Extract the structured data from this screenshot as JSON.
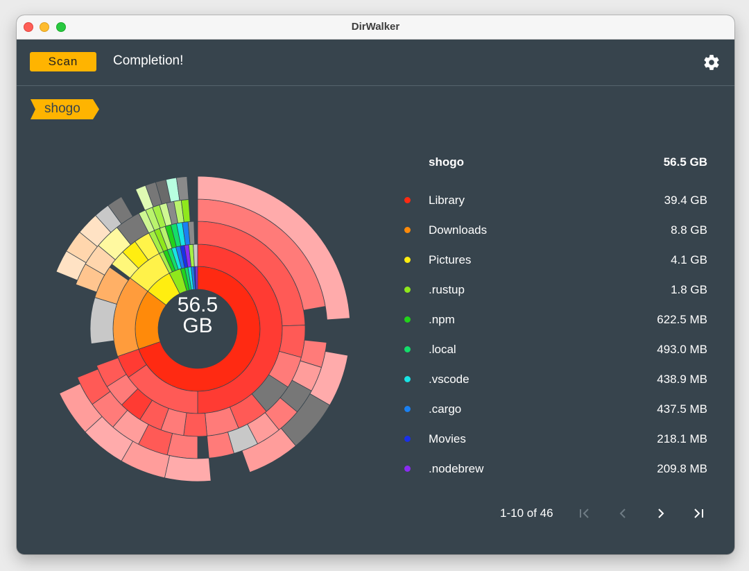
{
  "window": {
    "title": "DirWalker"
  },
  "toolbar": {
    "scan_label": "Scan",
    "status": "Completion!",
    "settings_icon": "gear-icon"
  },
  "breadcrumb": {
    "items": [
      "shogo"
    ],
    "color": "#ffb400"
  },
  "chart": {
    "center_value": "56.5",
    "center_unit": "GB"
  },
  "legend": {
    "root": {
      "name": "shogo",
      "size": "56.5 GB"
    },
    "items": [
      {
        "name": "Library",
        "size": "39.4 GB",
        "color": "#ff2a12"
      },
      {
        "name": "Downloads",
        "size": "8.8 GB",
        "color": "#ff8a0a"
      },
      {
        "name": "Pictures",
        "size": "4.1 GB",
        "color": "#ffee10"
      },
      {
        "name": ".rustup",
        "size": "1.8 GB",
        "color": "#8fe81c"
      },
      {
        "name": ".npm",
        "size": "622.5 MB",
        "color": "#22d31a"
      },
      {
        "name": ".local",
        "size": "493.0 MB",
        "color": "#14de6a"
      },
      {
        "name": ".vscode",
        "size": "438.9 MB",
        "color": "#18e4e4"
      },
      {
        "name": ".cargo",
        "size": "437.5 MB",
        "color": "#1a80f2"
      },
      {
        "name": "Movies",
        "size": "218.1 MB",
        "color": "#1a30e8"
      },
      {
        "name": ".nodebrew",
        "size": "209.8 MB",
        "color": "#8a2cf2"
      }
    ]
  },
  "pagination": {
    "range": "1-10 of 46",
    "first_icon": "first-page-icon",
    "prev_icon": "chevron-left-icon",
    "next_icon": "chevron-right-icon",
    "last_icon": "last-page-icon"
  }
}
